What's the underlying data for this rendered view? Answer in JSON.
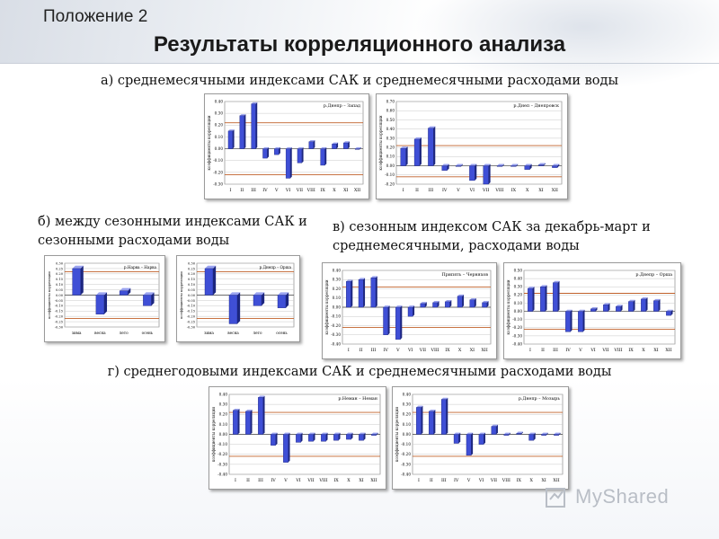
{
  "slide": {
    "label": "Положение 2",
    "title": "Результаты корреляционного анализа",
    "captions": {
      "a": "а) среднемесячными индексами САК и среднемесячными расходами воды",
      "b": "б) между сезонными индексами САК и сезонными расходами воды",
      "c": "в) сезонным индексом САК за декабрь-март и среднемесячными, расходами воды",
      "d": "г) среднегодовыми индексами САК и среднемесячными расходами воды"
    },
    "watermark": "MyShared"
  },
  "colors": {
    "bar": "#3f4fd6",
    "bar_side": "#1c267f",
    "bar_top": "#9aa3f0",
    "threshold": "#c0602a",
    "grid": "#c8c8c8"
  },
  "chart_data": [
    {
      "type": "bar",
      "group": "a",
      "title": "р.Днепр – Запад",
      "ylabel": "коэффициенты корреляции",
      "categories": [
        "I",
        "II",
        "III",
        "IV",
        "V",
        "VI",
        "VII",
        "VIII",
        "IX",
        "X",
        "XI",
        "XII"
      ],
      "values": [
        0.15,
        0.28,
        0.38,
        -0.08,
        -0.05,
        -0.25,
        -0.12,
        0.06,
        -0.14,
        0.04,
        0.05,
        0.0
      ],
      "ylim": [
        -0.3,
        0.4
      ],
      "ticks": [
        "0.40",
        "0.30",
        "0.20",
        "0.10",
        "0.00",
        "-0.10",
        "-0.20",
        "-0.30"
      ],
      "thresholds": [
        0.22,
        -0.22
      ]
    },
    {
      "type": "bar",
      "group": "a",
      "title": "р.Днеп – Днепровск",
      "ylabel": "коэффициенты корреляции",
      "categories": [
        "I",
        "II",
        "III",
        "IV",
        "V",
        "VI",
        "VII",
        "VIII",
        "IX",
        "X",
        "XI",
        "XII"
      ],
      "values": [
        0.19,
        0.29,
        0.41,
        -0.05,
        0.0,
        -0.16,
        -0.2,
        0.0,
        0.0,
        -0.04,
        0.01,
        -0.02
      ],
      "ylim": [
        -0.2,
        0.7
      ],
      "ticks": [
        "0.70",
        "0.60",
        "0.50",
        "0.40",
        "0.30",
        "0.20",
        "0.10",
        "0.00",
        "-0.10",
        "-0.20"
      ],
      "thresholds": [
        0.22,
        -0.12
      ]
    },
    {
      "type": "bar",
      "group": "b",
      "title": "р.Нарва – Нарва",
      "ylabel": "коэффициенты корреляции",
      "categories": [
        "зима",
        "весна",
        "лето",
        "осень"
      ],
      "values": [
        0.25,
        -0.18,
        0.04,
        -0.1
      ],
      "ylim": [
        -0.3,
        0.3
      ],
      "ticks": [
        "0.30",
        "0.25",
        "0.20",
        "0.15",
        "0.10",
        "0.05",
        "0.00",
        "-0.05",
        "-0.10",
        "-0.15",
        "-0.20",
        "-0.25",
        "-0.30"
      ],
      "thresholds": [
        0.22,
        -0.22
      ]
    },
    {
      "type": "bar",
      "group": "b",
      "title": "р.Днепр – Орша",
      "ylabel": "коэффициенты корреляции",
      "categories": [
        "зима",
        "весна",
        "лето",
        "осень"
      ],
      "values": [
        0.25,
        -0.27,
        -0.1,
        -0.12
      ],
      "ylim": [
        -0.3,
        0.3
      ],
      "ticks": [
        "0.30",
        "0.25",
        "0.20",
        "0.15",
        "0.10",
        "0.05",
        "0.00",
        "-0.05",
        "-0.10",
        "-0.15",
        "-0.20",
        "-0.25",
        "-0.30"
      ],
      "thresholds": [
        0.22,
        -0.22
      ]
    },
    {
      "type": "bar",
      "group": "c",
      "title": "Припять – Черняхов",
      "ylabel": "коэффициенты корреляции",
      "categories": [
        "I",
        "II",
        "III",
        "IV",
        "V",
        "VI",
        "VII",
        "VIII",
        "IX",
        "X",
        "XI",
        "XII"
      ],
      "values": [
        0.28,
        0.3,
        0.32,
        -0.3,
        -0.35,
        -0.1,
        0.04,
        0.05,
        0.06,
        0.12,
        0.08,
        0.05
      ],
      "ylim": [
        -0.4,
        0.4
      ],
      "ticks": [
        "0.40",
        "0.30",
        "0.20",
        "0.10",
        "0.00",
        "-0.10",
        "-0.20",
        "-0.30",
        "-0.40"
      ],
      "thresholds": [
        0.22,
        -0.22
      ]
    },
    {
      "type": "bar",
      "group": "c",
      "title": "р.Днепр – Орша",
      "ylabel": "коэффициенты корреляции",
      "categories": [
        "I",
        "II",
        "III",
        "IV",
        "V",
        "VI",
        "VII",
        "VIII",
        "IX",
        "X",
        "XI",
        "XII"
      ],
      "values": [
        0.28,
        0.3,
        0.35,
        -0.25,
        -0.25,
        0.03,
        0.08,
        0.06,
        0.12,
        0.15,
        0.13,
        -0.05
      ],
      "ylim": [
        -0.4,
        0.5
      ],
      "ticks": [
        "0.50",
        "0.40",
        "0.30",
        "0.20",
        "0.10",
        "0.00",
        "-0.10",
        "-0.20",
        "-0.30",
        "-0.40"
      ],
      "thresholds": [
        0.22,
        -0.22
      ]
    },
    {
      "type": "bar",
      "group": "d",
      "title": "р.Неман – Неман",
      "ylabel": "коэффициенты корреляции",
      "categories": [
        "I",
        "II",
        "III",
        "IV",
        "V",
        "VI",
        "VII",
        "VIII",
        "IX",
        "X",
        "XI",
        "XII"
      ],
      "values": [
        0.24,
        0.23,
        0.37,
        -0.11,
        -0.28,
        -0.08,
        -0.07,
        -0.07,
        -0.06,
        -0.05,
        -0.06,
        -0.01
      ],
      "ylim": [
        -0.4,
        0.4
      ],
      "ticks": [
        "0.40",
        "0.30",
        "0.20",
        "0.10",
        "0.00",
        "-0.10",
        "-0.20",
        "-0.30",
        "-0.40"
      ],
      "thresholds": [
        0.22,
        -0.22
      ]
    },
    {
      "type": "bar",
      "group": "d",
      "title": "р.Днепр – Мозырь",
      "ylabel": "коэффициенты корреляции",
      "categories": [
        "I",
        "II",
        "III",
        "IV",
        "V",
        "VI",
        "VII",
        "VIII",
        "IX",
        "X",
        "XI",
        "XII"
      ],
      "values": [
        0.27,
        0.23,
        0.35,
        -0.09,
        -0.21,
        -0.1,
        0.08,
        -0.01,
        0.01,
        -0.06,
        -0.01,
        -0.01
      ],
      "ylim": [
        -0.4,
        0.4
      ],
      "ticks": [
        "0.40",
        "0.30",
        "0.20",
        "0.10",
        "0.00",
        "-0.10",
        "-0.20",
        "-0.30",
        "-0.40"
      ],
      "thresholds": [
        0.22,
        -0.22
      ]
    }
  ]
}
